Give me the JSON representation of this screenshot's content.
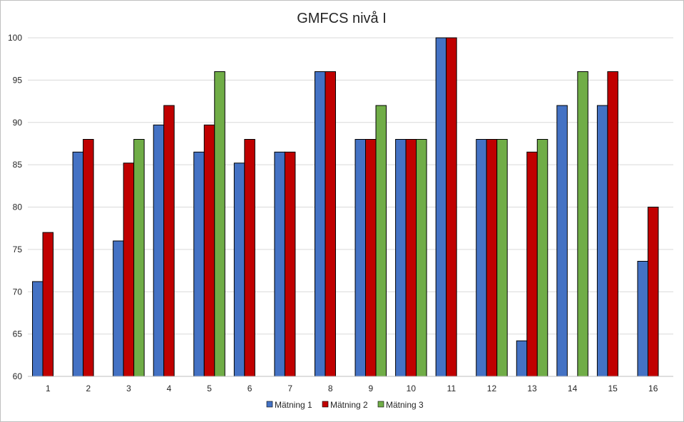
{
  "chart_data": {
    "type": "bar",
    "title": "GMFCS nivå I",
    "xlabel": "",
    "ylabel": "",
    "ylim": [
      60,
      100
    ],
    "yticks": [
      60,
      65,
      70,
      75,
      80,
      85,
      90,
      95,
      100
    ],
    "grid": true,
    "legend_position": "bottom",
    "categories": [
      "1",
      "2",
      "3",
      "4",
      "5",
      "6",
      "7",
      "8",
      "9",
      "10",
      "11",
      "12",
      "13",
      "14",
      "15",
      "16"
    ],
    "series": [
      {
        "name": "Mätning 1",
        "color": "#4472c4",
        "values": [
          71.2,
          86.5,
          76.0,
          89.7,
          86.5,
          85.2,
          86.5,
          96.0,
          88.0,
          88.0,
          100.0,
          88.0,
          64.2,
          92.0,
          92.0,
          73.6
        ]
      },
      {
        "name": "Mätning 2",
        "color": "#c00000",
        "values": [
          77.0,
          88.0,
          85.2,
          92.0,
          89.7,
          88.0,
          86.5,
          96.0,
          88.0,
          88.0,
          100.0,
          88.0,
          86.5,
          null,
          96.0,
          80.0
        ]
      },
      {
        "name": "Mätning 3",
        "color": "#70ad47",
        "values": [
          null,
          null,
          88.0,
          null,
          96.0,
          null,
          null,
          null,
          92.0,
          88.0,
          null,
          88.0,
          88.0,
          96.0,
          null,
          null
        ]
      }
    ]
  }
}
